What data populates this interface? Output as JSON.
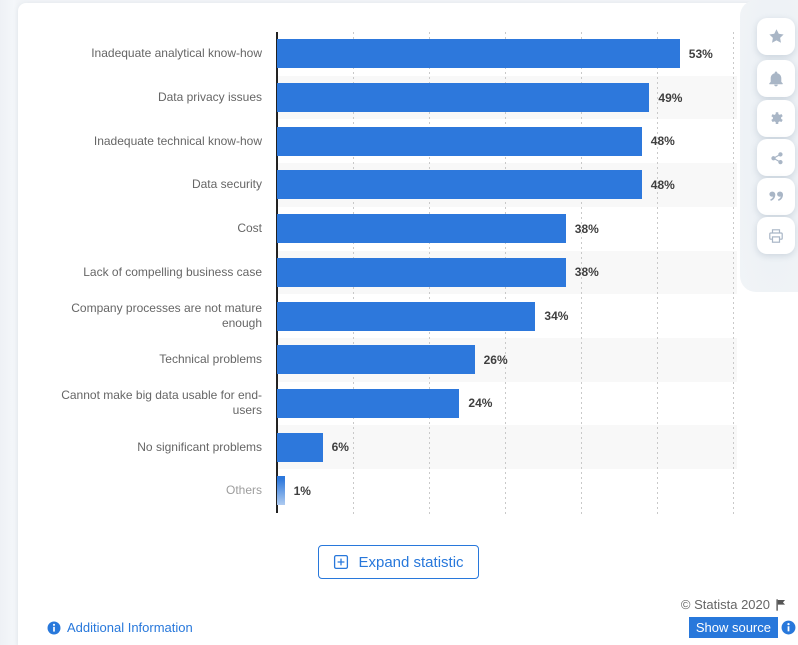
{
  "chart_data": {
    "type": "bar",
    "orientation": "horizontal",
    "categories": [
      "Inadequate analytical know-how",
      "Data privacy issues",
      "Inadequate technical know-how",
      "Data security",
      "Cost",
      "Lack of compelling business case",
      "Company processes are not mature enough",
      "Technical problems",
      "Cannot make big data usable for end-users",
      "No significant problems",
      "Others"
    ],
    "values": [
      53,
      49,
      48,
      48,
      38,
      38,
      34,
      26,
      24,
      6,
      1
    ],
    "value_labels": [
      "53%",
      "49%",
      "48%",
      "48%",
      "38%",
      "38%",
      "34%",
      "26%",
      "24%",
      "6%",
      "1%"
    ],
    "unit": "%",
    "xlim": [
      0,
      60
    ],
    "gridline_step": 10,
    "grid": "dotted-vertical",
    "legend": "none",
    "row_striping": "alternate-even-rows",
    "muted_categories": [
      "Others"
    ]
  },
  "toolbar": {
    "icons": [
      "star-icon",
      "bell-icon",
      "gear-icon",
      "share-icon",
      "quote-icon",
      "print-icon"
    ]
  },
  "expand_button": {
    "label": "Expand statistic"
  },
  "footer": {
    "additional_information": "Additional Information",
    "copyright": "© Statista 2020",
    "show_source": "Show source"
  },
  "colors": {
    "bar": "#2d78dc",
    "bar_gradient_end": "#aecbf0",
    "link": "#2878db",
    "show_source_bg": "#2878db",
    "value_label": "#3f3f3f",
    "category_label": "#666666",
    "muted_label": "#9d9d9d",
    "axis": "#222222",
    "gridline": "#c9c9c9",
    "stripe": "#f8f8f8",
    "card_bg": "#ffffff",
    "page_bg": "#f1f4f7",
    "rail_icon": "#a9b6c6"
  }
}
